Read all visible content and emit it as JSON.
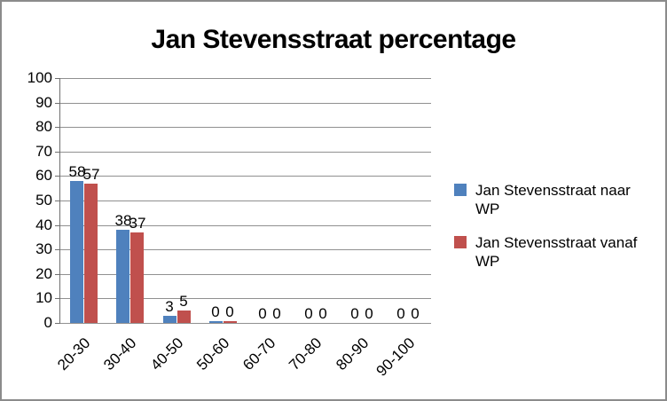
{
  "chart_data": {
    "type": "bar",
    "title": "Jan Stevensstraat percentage",
    "categories": [
      "20-30",
      "30-40",
      "40-50",
      "50-60",
      "60-70",
      "70-80",
      "80-90",
      "90-100"
    ],
    "series": [
      {
        "name": "Jan Stevensstraat naar WP",
        "color": "#4F81BD",
        "values": [
          58,
          38,
          3,
          0.5,
          0,
          0,
          0,
          0
        ],
        "data_labels": [
          "58",
          "38",
          "3",
          "0",
          "0",
          "0",
          "0",
          "0"
        ]
      },
      {
        "name": "Jan Stevensstraat vanaf WP",
        "color": "#C0504D",
        "values": [
          57,
          37,
          5,
          0.5,
          0,
          0,
          0,
          0
        ],
        "data_labels": [
          "57",
          "37",
          "5",
          "0",
          "0",
          "0",
          "0",
          "0"
        ]
      }
    ],
    "xlabel": "",
    "ylabel": "",
    "ylim": [
      0,
      100
    ],
    "ytick_step": 10,
    "y_ticks": [
      0,
      10,
      20,
      30,
      40,
      50,
      60,
      70,
      80,
      90,
      100
    ],
    "grid": true,
    "legend_position": "right"
  },
  "colors": {
    "grid": "#909090",
    "axis": "#6f6f6f",
    "outer_border": "#8b8b8b",
    "text": "#000000"
  }
}
